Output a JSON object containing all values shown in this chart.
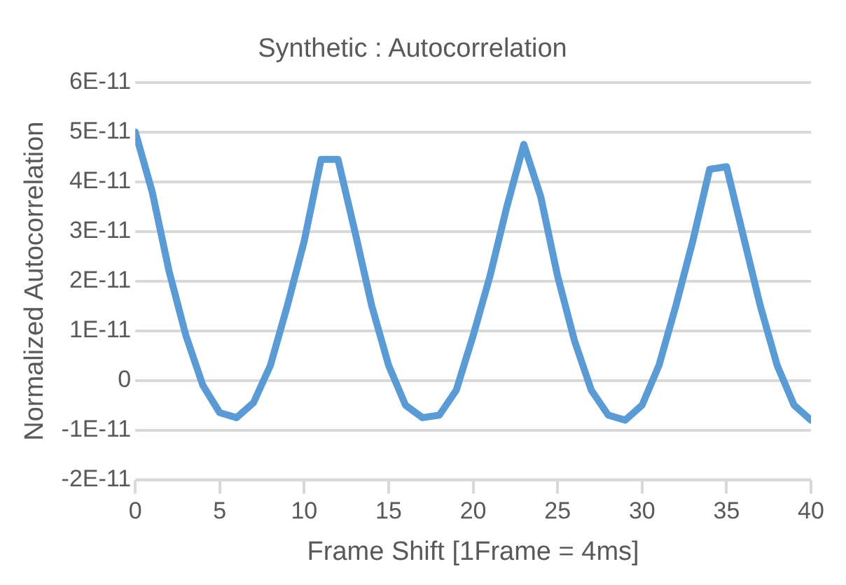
{
  "chart_data": {
    "type": "line",
    "title": "Synthetic : Autocorrelation",
    "xlabel": "Frame Shift [1Frame = 4ms]",
    "ylabel": "Normalized Autocorrelation",
    "x": [
      0,
      1,
      2,
      3,
      4,
      5,
      6,
      7,
      8,
      9,
      10,
      11,
      12,
      13,
      14,
      15,
      16,
      17,
      18,
      19,
      20,
      21,
      22,
      23,
      24,
      25,
      26,
      27,
      28,
      29,
      30,
      31,
      32,
      33,
      34,
      35,
      36,
      37,
      38,
      39,
      40
    ],
    "series": [
      {
        "color": "#5b9bd5",
        "values": [
          5e-11,
          3.8e-11,
          2.2e-11,
          9e-12,
          -1e-12,
          -6.5e-12,
          -7.5e-12,
          -4.5e-12,
          3e-12,
          1.5e-11,
          2.8e-11,
          4.45e-11,
          4.45e-11,
          3e-11,
          1.5e-11,
          3e-12,
          -5e-12,
          -7.5e-12,
          -7e-12,
          -2e-12,
          9e-12,
          2.1e-11,
          3.5e-11,
          4.75e-11,
          3.7e-11,
          2.1e-11,
          8e-12,
          -2e-12,
          -7e-12,
          -8e-12,
          -5e-12,
          3e-12,
          1.5e-11,
          2.8e-11,
          4.25e-11,
          4.3e-11,
          2.9e-11,
          1.5e-11,
          3e-12,
          -5e-12,
          -8e-12
        ]
      }
    ],
    "xlim": [
      0,
      40
    ],
    "xticks": [
      0,
      5,
      10,
      15,
      20,
      25,
      30,
      35,
      40
    ],
    "ylim": [
      -2e-11,
      6e-11
    ],
    "yticks": [
      {
        "value": -2e-11,
        "label": "-2E-11"
      },
      {
        "value": -1e-11,
        "label": "-1E-11"
      },
      {
        "value": 0,
        "label": "0"
      },
      {
        "value": 1e-11,
        "label": "1E-11"
      },
      {
        "value": 2e-11,
        "label": "2E-11"
      },
      {
        "value": 3e-11,
        "label": "3E-11"
      },
      {
        "value": 4e-11,
        "label": "4E-11"
      },
      {
        "value": 5e-11,
        "label": "5E-11"
      },
      {
        "value": 6e-11,
        "label": "6E-11"
      }
    ],
    "grid": "y",
    "legend": false,
    "marker": "none",
    "line_style": "solid"
  }
}
